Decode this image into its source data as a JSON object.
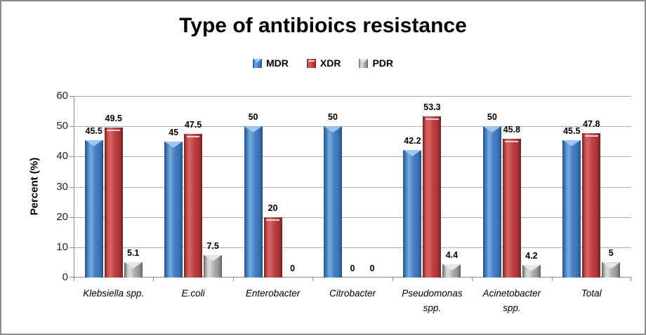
{
  "window": {
    "background": "#FFFFFF",
    "border_color": "#8C8C8C"
  },
  "chart_data": {
    "type": "bar",
    "title": "Type of antibioics resistance",
    "xlabel": "",
    "ylabel": "Percent (%)",
    "ylim": [
      0,
      60
    ],
    "yticks": [
      0,
      10,
      20,
      30,
      40,
      50,
      60
    ],
    "grid": true,
    "legend_position": "top",
    "categories": [
      "Klebsiella spp.",
      "E.coli",
      "Enterobacter",
      "Citrobacter",
      "Pseudomonas spp.",
      "Acinetobacter spp.",
      "Total"
    ],
    "category_label_lines": [
      [
        "Klebsiella spp."
      ],
      [
        "E.coli"
      ],
      [
        "Enterobacter"
      ],
      [
        "Citrobacter"
      ],
      [
        "Pseudomonas",
        "spp."
      ],
      [
        "Acinetobacter",
        "spp."
      ],
      [
        "Total"
      ]
    ],
    "series": [
      {
        "name": "MDR",
        "color": "#3F7CBF",
        "values": [
          45.5,
          45,
          50,
          50,
          42.2,
          50,
          45.5
        ],
        "labels": [
          "45.5",
          "45",
          "50",
          "50",
          "42.2",
          "50",
          "45.5"
        ]
      },
      {
        "name": "XDR",
        "color": "#BE3E40",
        "values": [
          49.5,
          47.5,
          20,
          0,
          53.3,
          45.8,
          47.8
        ],
        "labels": [
          "49.5",
          "47.5",
          "20",
          "0",
          "53.3",
          "45.8",
          "47.8"
        ]
      },
      {
        "name": "PDR",
        "color": "#A6A6A6",
        "values": [
          5.1,
          7.5,
          0,
          0,
          4.4,
          4.2,
          5
        ],
        "labels": [
          "5.1",
          "7.5",
          "0",
          "0",
          "4.4",
          "4.2",
          "5"
        ]
      }
    ]
  }
}
